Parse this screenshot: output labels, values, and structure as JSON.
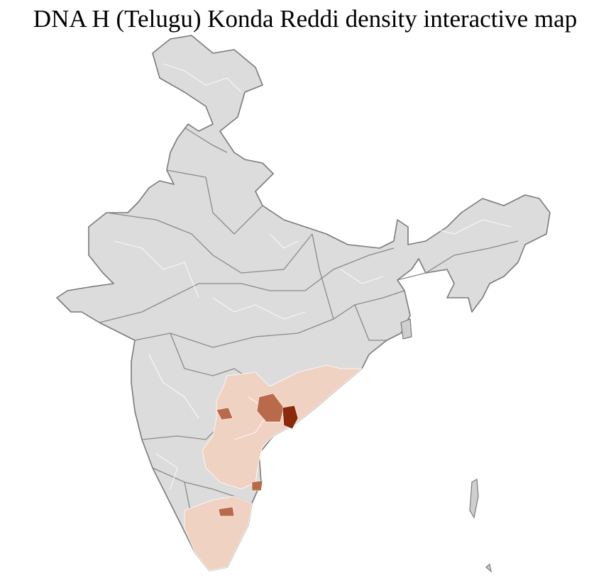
{
  "title": "DNA H (Telugu) Konda Reddi density interactive map"
}
